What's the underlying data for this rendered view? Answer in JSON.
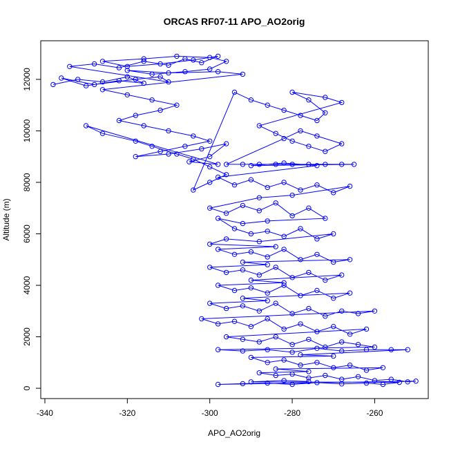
{
  "chart_data": {
    "type": "scatter",
    "title": "ORCAS RF07-11 APO_AO2orig",
    "xlabel": "APO_AO2orig",
    "ylabel": "Altitude (m)",
    "xlim": [
      -341,
      -247
    ],
    "ylim": [
      -400,
      13500
    ],
    "x_ticks": [
      -340,
      -320,
      -300,
      -280,
      -260
    ],
    "y_ticks": [
      0,
      2000,
      4000,
      6000,
      8000,
      10000,
      12000
    ],
    "x_tick_labels": [
      "-340",
      "-320",
      "-300",
      "-280",
      "-260"
    ],
    "y_tick_labels": [
      "0",
      "2000",
      "4000",
      "6000",
      "8000",
      "10000",
      "12000"
    ],
    "grid": false,
    "markers": "open-circle",
    "connected": true,
    "color": "#0000ff",
    "series": [
      {
        "points": [
          [
            -338,
            11800
          ],
          [
            -332,
            12000
          ],
          [
            -326,
            11900
          ],
          [
            -320,
            12100
          ],
          [
            -316,
            11850
          ],
          [
            -322,
            11950
          ],
          [
            -330,
            11750
          ],
          [
            -336,
            12050
          ],
          [
            -328,
            11800
          ],
          [
            -318,
            12000
          ],
          [
            -312,
            12100
          ],
          [
            -310,
            11900
          ],
          [
            -334,
            12500
          ],
          [
            -328,
            12600
          ],
          [
            -322,
            12450
          ],
          [
            -316,
            12700
          ],
          [
            -310,
            12550
          ],
          [
            -306,
            12800
          ],
          [
            -302,
            12650
          ],
          [
            -298,
            12900
          ],
          [
            -304,
            12750
          ],
          [
            -312,
            12600
          ],
          [
            -320,
            12500
          ],
          [
            -326,
            12700
          ],
          [
            -316,
            12800
          ],
          [
            -308,
            12900
          ],
          [
            -300,
            12850
          ],
          [
            -296,
            12700
          ],
          [
            -300,
            12400
          ],
          [
            -306,
            12300
          ],
          [
            -314,
            12200
          ],
          [
            -320,
            12350
          ],
          [
            -310,
            12250
          ],
          [
            -298,
            12300
          ],
          [
            -292,
            12200
          ],
          [
            -326,
            11600
          ],
          [
            -320,
            11400
          ],
          [
            -314,
            11200
          ],
          [
            -308,
            11000
          ],
          [
            -312,
            10800
          ],
          [
            -318,
            10600
          ],
          [
            -322,
            10400
          ],
          [
            -316,
            10200
          ],
          [
            -310,
            10000
          ],
          [
            -304,
            9800
          ],
          [
            -300,
            9600
          ],
          [
            -306,
            9400
          ],
          [
            -312,
            9200
          ],
          [
            -318,
            9000
          ],
          [
            -310,
            9100
          ],
          [
            -302,
            9300
          ],
          [
            -296,
            9500
          ],
          [
            -300,
            9000
          ],
          [
            -305,
            8800
          ],
          [
            -298,
            8700
          ],
          [
            -330,
            10200
          ],
          [
            -326,
            9900
          ],
          [
            -318,
            9600
          ],
          [
            -314,
            9400
          ],
          [
            -308,
            9100
          ],
          [
            -304,
            8900
          ],
          [
            -300,
            8600
          ],
          [
            -296,
            8300
          ],
          [
            -300,
            8000
          ],
          [
            -304,
            7700
          ],
          [
            -294,
            11500
          ],
          [
            -290,
            11200
          ],
          [
            -286,
            11000
          ],
          [
            -282,
            10800
          ],
          [
            -278,
            10600
          ],
          [
            -274,
            10400
          ],
          [
            -272,
            10700
          ],
          [
            -276,
            11200
          ],
          [
            -280,
            11500
          ],
          [
            -272,
            11300
          ],
          [
            -268,
            11100
          ],
          [
            -288,
            10200
          ],
          [
            -284,
            9900
          ],
          [
            -280,
            9600
          ],
          [
            -276,
            9400
          ],
          [
            -272,
            9200
          ],
          [
            -268,
            9500
          ],
          [
            -274,
            9800
          ],
          [
            -278,
            10000
          ],
          [
            -282,
            9700
          ],
          [
            -296,
            8700
          ],
          [
            -292,
            8700
          ],
          [
            -288,
            8700
          ],
          [
            -284,
            8700
          ],
          [
            -280,
            8700
          ],
          [
            -276,
            8700
          ],
          [
            -272,
            8700
          ],
          [
            -268,
            8700
          ],
          [
            -265,
            8700
          ],
          [
            -290,
            8650
          ],
          [
            -282,
            8750
          ],
          [
            -274,
            8650
          ],
          [
            -298,
            8200
          ],
          [
            -294,
            7900
          ],
          [
            -290,
            8100
          ],
          [
            -286,
            7800
          ],
          [
            -282,
            8000
          ],
          [
            -278,
            7700
          ],
          [
            -274,
            7900
          ],
          [
            -270,
            7600
          ],
          [
            -266,
            7850
          ],
          [
            -280,
            7500
          ],
          [
            -288,
            7400
          ],
          [
            -300,
            7000
          ],
          [
            -296,
            6800
          ],
          [
            -292,
            7100
          ],
          [
            -288,
            6900
          ],
          [
            -284,
            7200
          ],
          [
            -280,
            6700
          ],
          [
            -276,
            7000
          ],
          [
            -272,
            6600
          ],
          [
            -286,
            6500
          ],
          [
            -292,
            6400
          ],
          [
            -298,
            6600
          ],
          [
            -294,
            6200
          ],
          [
            -290,
            6000
          ],
          [
            -286,
            6100
          ],
          [
            -282,
            5900
          ],
          [
            -278,
            6200
          ],
          [
            -274,
            5800
          ],
          [
            -270,
            6000
          ],
          [
            -288,
            5700
          ],
          [
            -296,
            5800
          ],
          [
            -300,
            5600
          ],
          [
            -284,
            5500
          ],
          [
            -298,
            5400
          ],
          [
            -294,
            5200
          ],
          [
            -290,
            5300
          ],
          [
            -286,
            5100
          ],
          [
            -282,
            5400
          ],
          [
            -278,
            5000
          ],
          [
            -274,
            5200
          ],
          [
            -270,
            4900
          ],
          [
            -266,
            5000
          ],
          [
            -292,
            4900
          ],
          [
            -286,
            4800
          ],
          [
            -300,
            4700
          ],
          [
            -296,
            4500
          ],
          [
            -292,
            4600
          ],
          [
            -288,
            4400
          ],
          [
            -284,
            4700
          ],
          [
            -280,
            4300
          ],
          [
            -276,
            4500
          ],
          [
            -272,
            4200
          ],
          [
            -268,
            4400
          ],
          [
            -290,
            4200
          ],
          [
            -282,
            4100
          ],
          [
            -298,
            4000
          ],
          [
            -294,
            3800
          ],
          [
            -290,
            3900
          ],
          [
            -286,
            3700
          ],
          [
            -282,
            4000
          ],
          [
            -278,
            3600
          ],
          [
            -274,
            3800
          ],
          [
            -270,
            3500
          ],
          [
            -266,
            3700
          ],
          [
            -292,
            3500
          ],
          [
            -286,
            3400
          ],
          [
            -300,
            3300
          ],
          [
            -296,
            3100
          ],
          [
            -292,
            3200
          ],
          [
            -288,
            3000
          ],
          [
            -284,
            3300
          ],
          [
            -280,
            2900
          ],
          [
            -276,
            3100
          ],
          [
            -272,
            2800
          ],
          [
            -268,
            3000
          ],
          [
            -264,
            2900
          ],
          [
            -260,
            3000
          ],
          [
            -302,
            2700
          ],
          [
            -298,
            2500
          ],
          [
            -294,
            2600
          ],
          [
            -290,
            2400
          ],
          [
            -286,
            2700
          ],
          [
            -282,
            2300
          ],
          [
            -278,
            2500
          ],
          [
            -274,
            2200
          ],
          [
            -270,
            2400
          ],
          [
            -266,
            2100
          ],
          [
            -262,
            2300
          ],
          [
            -296,
            2000
          ],
          [
            -292,
            1900
          ],
          [
            -288,
            1800
          ],
          [
            -284,
            2000
          ],
          [
            -280,
            1700
          ],
          [
            -276,
            1900
          ],
          [
            -272,
            1600
          ],
          [
            -268,
            1800
          ],
          [
            -264,
            1700
          ],
          [
            -260,
            1600
          ],
          [
            -298,
            1500
          ],
          [
            -292,
            1450
          ],
          [
            -286,
            1500
          ],
          [
            -280,
            1400
          ],
          [
            -274,
            1550
          ],
          [
            -268,
            1450
          ],
          [
            -262,
            1500
          ],
          [
            -256,
            1500
          ],
          [
            -252,
            1500
          ],
          [
            -278,
            1300
          ],
          [
            -270,
            1250
          ],
          [
            -290,
            1200
          ],
          [
            -286,
            1000
          ],
          [
            -282,
            1100
          ],
          [
            -278,
            900
          ],
          [
            -274,
            1000
          ],
          [
            -270,
            800
          ],
          [
            -266,
            900
          ],
          [
            -262,
            700
          ],
          [
            -258,
            800
          ],
          [
            -284,
            750
          ],
          [
            -276,
            650
          ],
          [
            -288,
            600
          ],
          [
            -284,
            500
          ],
          [
            -280,
            550
          ],
          [
            -276,
            400
          ],
          [
            -272,
            500
          ],
          [
            -268,
            350
          ],
          [
            -264,
            450
          ],
          [
            -260,
            300
          ],
          [
            -256,
            350
          ],
          [
            -252,
            250
          ],
          [
            -250,
            280
          ],
          [
            -298,
            150
          ],
          [
            -292,
            180
          ],
          [
            -286,
            200
          ],
          [
            -280,
            150
          ],
          [
            -274,
            220
          ],
          [
            -268,
            170
          ],
          [
            -262,
            200
          ],
          [
            -258,
            150
          ],
          [
            -254,
            230
          ],
          [
            -290,
            250
          ],
          [
            -282,
            300
          ],
          [
            -276,
            260
          ]
        ]
      }
    ]
  }
}
